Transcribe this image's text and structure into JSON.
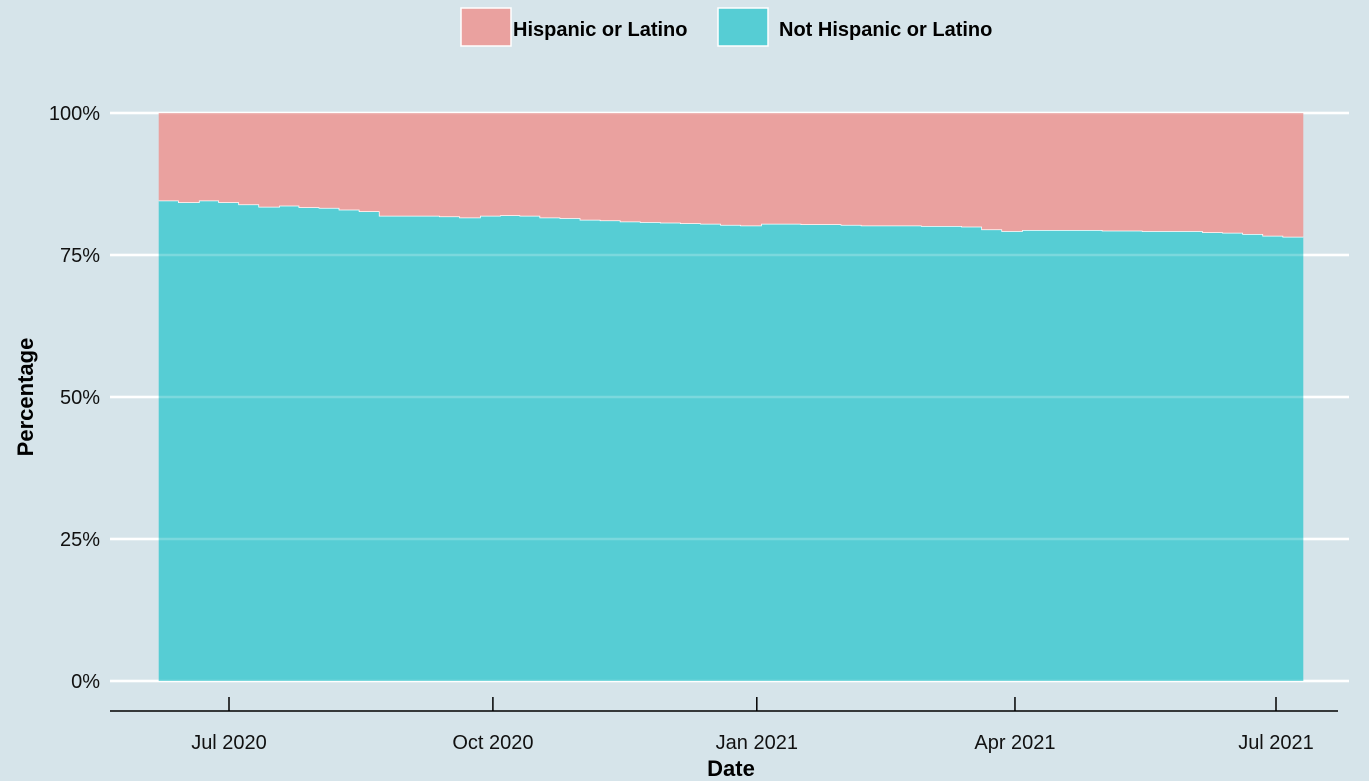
{
  "chart_data": {
    "type": "area",
    "stacking": "percent",
    "xlabel": "Date",
    "ylabel": "Percentage",
    "ylim": [
      0,
      100
    ],
    "yticks": [
      "0%",
      "25%",
      "50%",
      "75%",
      "100%"
    ],
    "grid": "horizontal",
    "legend_position": "top",
    "x_ticks": [
      {
        "label": "Jul 2020",
        "date": "2020-07-01"
      },
      {
        "label": "Oct 2020",
        "date": "2020-10-01"
      },
      {
        "label": "Jan 2021",
        "date": "2021-01-01"
      },
      {
        "label": "Apr 2021",
        "date": "2021-04-01"
      },
      {
        "label": "Jul 2021",
        "date": "2021-07-01"
      }
    ],
    "x": [
      "2020-06-10",
      "2020-06-17",
      "2020-06-24",
      "2020-07-01",
      "2020-07-08",
      "2020-07-15",
      "2020-07-22",
      "2020-07-29",
      "2020-08-05",
      "2020-08-12",
      "2020-08-19",
      "2020-08-26",
      "2020-09-02",
      "2020-09-09",
      "2020-09-16",
      "2020-09-23",
      "2020-09-30",
      "2020-10-07",
      "2020-10-14",
      "2020-10-21",
      "2020-10-28",
      "2020-11-04",
      "2020-11-11",
      "2020-11-18",
      "2020-11-25",
      "2020-12-02",
      "2020-12-09",
      "2020-12-16",
      "2020-12-23",
      "2020-12-30",
      "2021-01-06",
      "2021-01-13",
      "2021-01-20",
      "2021-01-27",
      "2021-02-03",
      "2021-02-10",
      "2021-02-17",
      "2021-02-24",
      "2021-03-03",
      "2021-03-10",
      "2021-03-17",
      "2021-03-24",
      "2021-03-31",
      "2021-04-07",
      "2021-04-14",
      "2021-04-21",
      "2021-04-28",
      "2021-05-05",
      "2021-05-12",
      "2021-05-19",
      "2021-05-26",
      "2021-06-02",
      "2021-06-09",
      "2021-06-16",
      "2021-06-23",
      "2021-06-30",
      "2021-07-07"
    ],
    "series": [
      {
        "name": "Not Hispanic or Latino",
        "color": "#56cdd4",
        "values": [
          84.6,
          84.3,
          84.6,
          84.3,
          83.9,
          83.5,
          83.7,
          83.4,
          83.3,
          83.0,
          82.7,
          81.9,
          81.9,
          81.9,
          81.8,
          81.6,
          81.9,
          82.0,
          81.9,
          81.6,
          81.5,
          81.2,
          81.1,
          80.9,
          80.8,
          80.7,
          80.6,
          80.5,
          80.3,
          80.2,
          80.5,
          80.5,
          80.4,
          80.4,
          80.3,
          80.2,
          80.2,
          80.2,
          80.1,
          80.1,
          80.0,
          79.5,
          79.2,
          79.4,
          79.4,
          79.4,
          79.4,
          79.3,
          79.3,
          79.2,
          79.2,
          79.2,
          79.0,
          78.9,
          78.7,
          78.4,
          78.2
        ]
      },
      {
        "name": "Hispanic or Latino",
        "color": "#eaa19f",
        "values": [
          15.4,
          15.7,
          15.4,
          15.7,
          16.1,
          16.5,
          16.3,
          16.6,
          16.7,
          17.0,
          17.3,
          18.1,
          18.1,
          18.1,
          18.2,
          18.4,
          18.1,
          18.0,
          18.1,
          18.4,
          18.5,
          18.8,
          18.9,
          19.1,
          19.2,
          19.3,
          19.4,
          19.5,
          19.7,
          19.8,
          19.5,
          19.5,
          19.6,
          19.6,
          19.7,
          19.8,
          19.8,
          19.8,
          19.9,
          19.9,
          20.0,
          20.5,
          20.8,
          20.6,
          20.6,
          20.6,
          20.6,
          20.7,
          20.7,
          20.8,
          20.8,
          20.8,
          21.0,
          21.1,
          21.3,
          21.6,
          21.8
        ]
      }
    ]
  }
}
